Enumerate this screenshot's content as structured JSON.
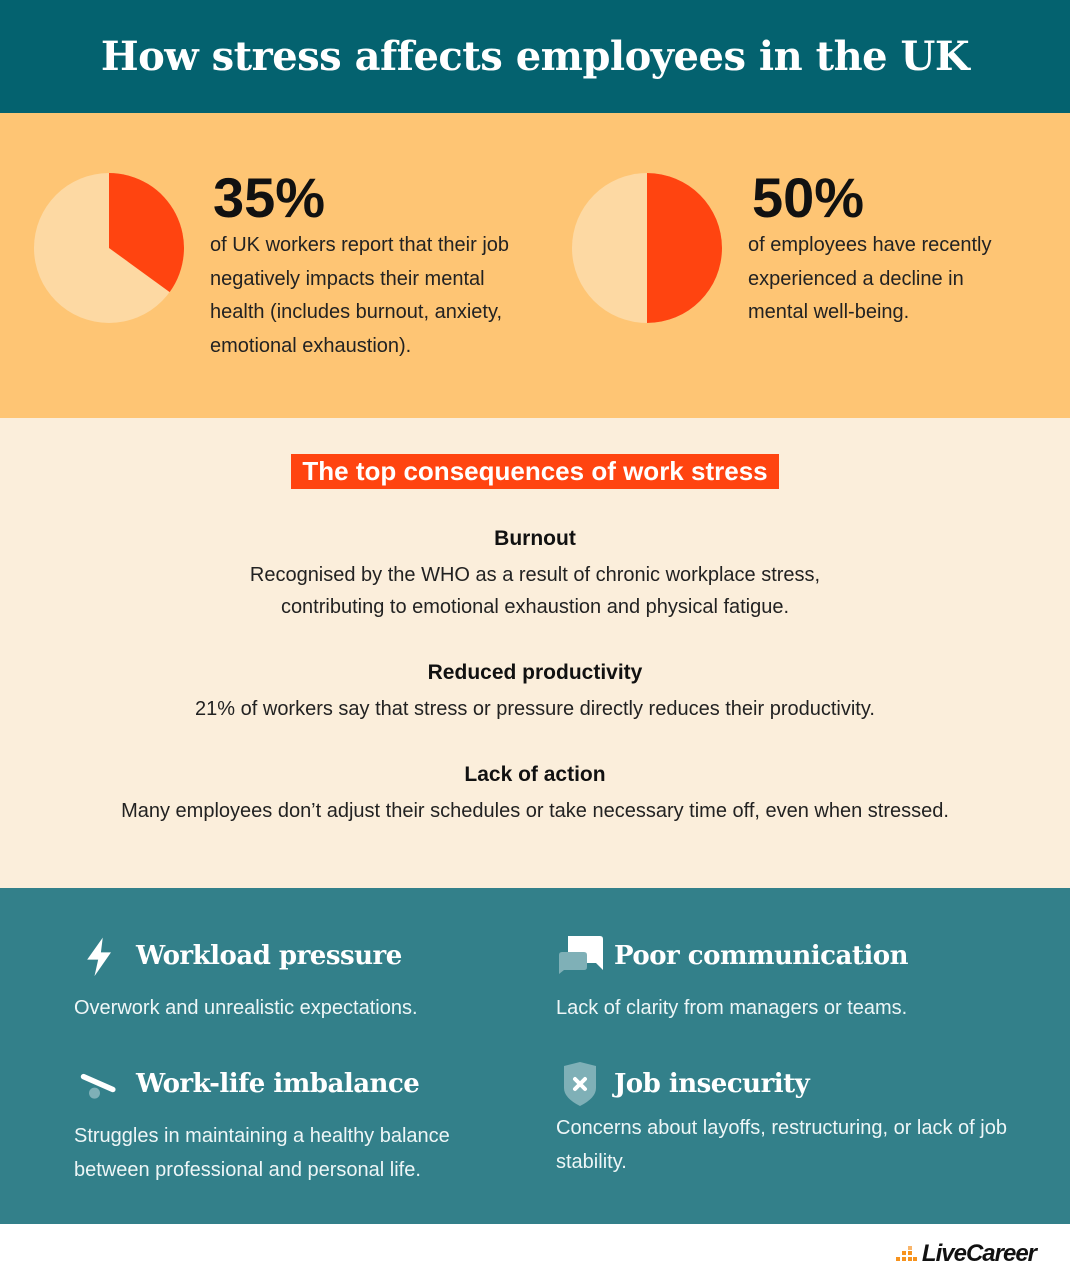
{
  "header": {
    "title": "How stress affects employees in the UK"
  },
  "stats": [
    {
      "value": "35%",
      "percent": 35,
      "text": "of UK workers report that their job negatively impacts their mental health (includes burnout, anxiety, emotional exhaustion)."
    },
    {
      "value": "50%",
      "percent": 50,
      "text": "of employees have recently experienced a decline in mental well-being."
    }
  ],
  "colors": {
    "header": "#04626f",
    "stats_bg": "#fec574",
    "pie_fill": "#ff4410",
    "pie_rest": "#fdd9a3",
    "cream": "#fbeedb",
    "teal": "#33808a"
  },
  "consequences": {
    "title": "The top consequences of work stress",
    "items": [
      {
        "heading": "Burnout",
        "text": "Recognised by the WHO as a result of chronic workplace stress, contributing to emotional exhaustion and physical fatigue."
      },
      {
        "heading": "Reduced productivity",
        "text": "21% of workers say that stress or pressure directly reduces their productivity."
      },
      {
        "heading": "Lack of action",
        "text": "Many employees don’t adjust their schedules or take necessary time off, even when stressed."
      }
    ]
  },
  "factors": [
    {
      "icon": "lightning-icon",
      "title": "Workload pressure",
      "text": "Overwork and unrealistic expectations."
    },
    {
      "icon": "chat-bubbles-icon",
      "title": "Poor communication",
      "text": "Lack of clarity from managers or teams."
    },
    {
      "icon": "seesaw-icon",
      "title": "Work-life imbalance",
      "text": "Struggles in maintaining a healthy balance between professional and personal life."
    },
    {
      "icon": "shield-x-icon",
      "title": "Job insecurity",
      "text": "Concerns about layoffs, restructuring, or lack of job stability."
    }
  ],
  "footer": {
    "logo": "LiveCareer"
  }
}
